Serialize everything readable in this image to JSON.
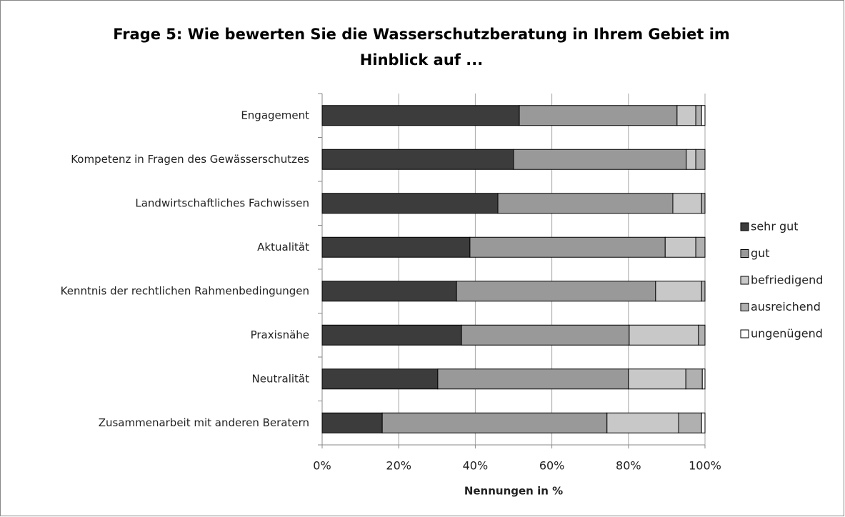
{
  "chart_data": {
    "type": "stacked-bar-horizontal",
    "title": "Frage 5: Wie bewerten Sie die Wasserschutzberatung in Ihrem Gebiet im Hinblick auf ...",
    "xlabel": "Nennungen in %",
    "categories": [
      "Engagement",
      "Kompetenz in Fragen des Gewässerschutzes",
      "Landwirtschaftliches Fachwissen",
      "Aktualität",
      "Kenntnis der rechtlichen Rahmenbedingungen",
      "Praxisnähe",
      "Neutralität",
      "Zusammenarbeit mit anderen Beratern"
    ],
    "series": [
      {
        "name": "sehr gut",
        "color": "#3c3c3c",
        "values": [
          51.5,
          50.0,
          45.9,
          38.6,
          35.1,
          36.4,
          30.2,
          15.7
        ]
      },
      {
        "name": "gut",
        "color": "#999999",
        "values": [
          41.2,
          45.1,
          45.7,
          51.0,
          52.0,
          43.8,
          49.8,
          58.7
        ]
      },
      {
        "name": "befriedigend",
        "color": "#c8c8c8",
        "values": [
          4.9,
          2.5,
          7.5,
          8.0,
          12.0,
          18.1,
          15.0,
          18.7
        ]
      },
      {
        "name": "ausreichend",
        "color": "#b0b0b0",
        "values": [
          1.5,
          2.4,
          0.9,
          2.4,
          0.9,
          1.7,
          4.3,
          6.0
        ]
      },
      {
        "name": "ungenügend",
        "color": "#ffffff",
        "values": [
          0.9,
          0,
          0,
          0,
          0,
          0,
          0.7,
          0.9
        ]
      }
    ],
    "xlim": [
      0,
      100
    ],
    "xticks": [
      {
        "value": 0,
        "label": "0%"
      },
      {
        "value": 20,
        "label": "20%"
      },
      {
        "value": 40,
        "label": "40%"
      },
      {
        "value": 60,
        "label": "60%"
      },
      {
        "value": 80,
        "label": "80%"
      },
      {
        "value": 100,
        "label": "100%"
      }
    ],
    "grid": true,
    "legend": "right"
  }
}
